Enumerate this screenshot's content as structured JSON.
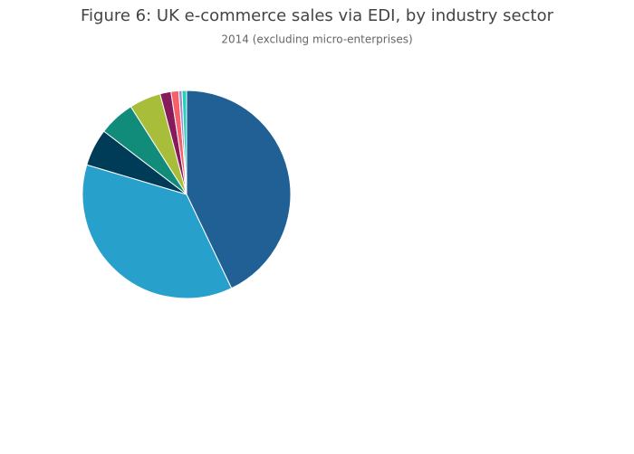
{
  "chart_data": {
    "type": "pie",
    "title": "Figure 6: UK e-commerce sales via EDI, by industry sector",
    "subtitle": "2014 (excluding micro-enterprises)",
    "values": [
      42.9,
      36.7,
      5.8,
      5.6,
      4.9,
      1.7,
      1.2,
      0.5,
      0.7
    ],
    "colors": [
      "#206095",
      "#27a0cc",
      "#003c57",
      "#118c7b",
      "#a8bd3a",
      "#871a5b",
      "#f66068",
      "#9e88d0",
      "#22d0b6"
    ]
  }
}
